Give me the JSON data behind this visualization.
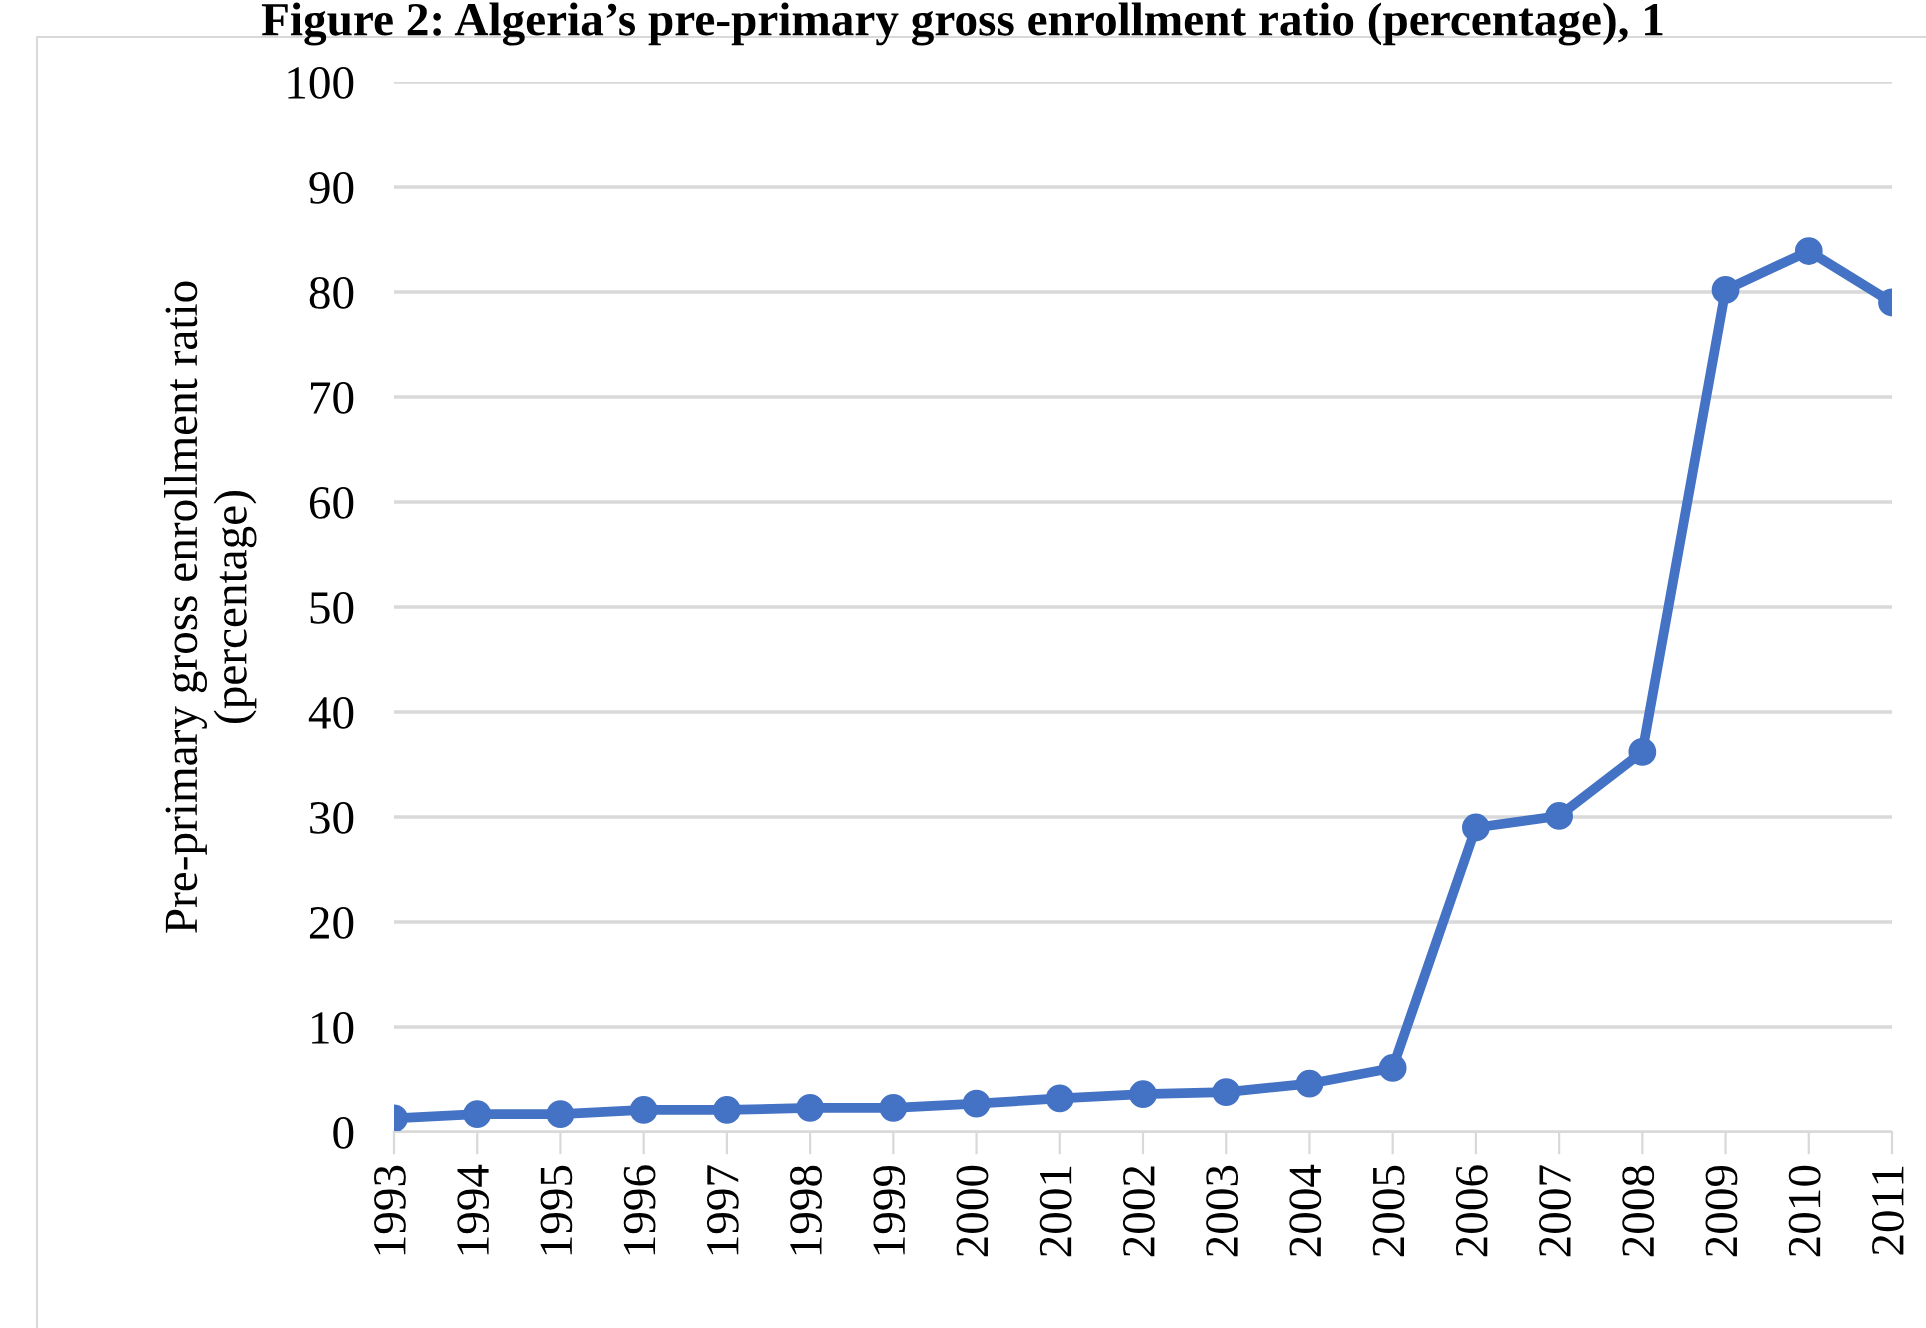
{
  "chart_data": {
    "type": "line",
    "title": "Figure 2: Algeria’s pre-primary gross enrollment ratio (percentage), 1",
    "ylabel": "Pre-primary gross enrollment ratio\n(percentage)",
    "categories": [
      "1993",
      "1994",
      "1995",
      "1996",
      "1997",
      "1998",
      "1999",
      "2000",
      "2001",
      "2002",
      "2003",
      "2004",
      "2005",
      "2006",
      "2007",
      "2008",
      "2009",
      "2010",
      "2011"
    ],
    "series": [
      {
        "color": "#4472c4",
        "values": [
          1.3,
          1.7,
          1.7,
          2.1,
          2.1,
          2.3,
          2.3,
          2.7,
          3.2,
          3.6,
          3.8,
          4.6,
          6.1,
          29,
          30.1,
          36.2,
          80.2,
          83.9,
          79
        ]
      }
    ],
    "ylim": [
      0,
      100
    ],
    "yticks": [
      0,
      10,
      20,
      30,
      40,
      50,
      60,
      70,
      80,
      90,
      100
    ],
    "grid": "y",
    "marker": "circle",
    "line_style": "solid"
  }
}
